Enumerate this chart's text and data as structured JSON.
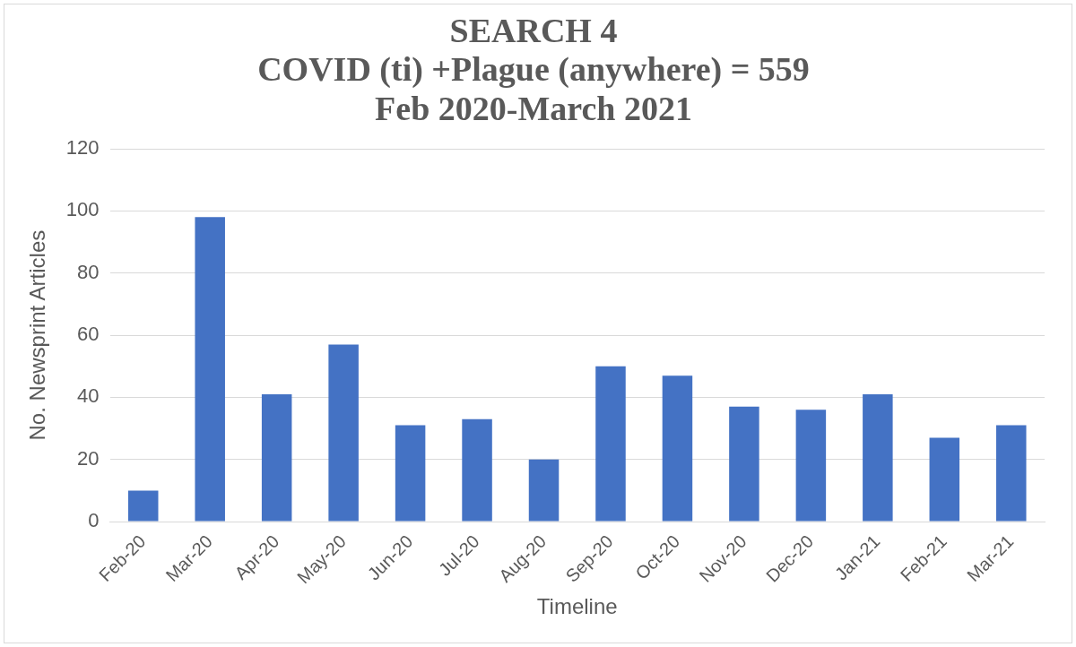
{
  "chart_data": {
    "type": "bar",
    "title": "SEARCH 4\nCOVID (ti) +Plague (anywhere) = 559\nFeb 2020-March 2021",
    "xlabel": "Timeline",
    "ylabel": "No. Newsprint Articles",
    "categories": [
      "Feb-20",
      "Mar-20",
      "Apr-20",
      "May-20",
      "Jun-20",
      "Jul-20",
      "Aug-20",
      "Sep-20",
      "Oct-20",
      "Nov-20",
      "Dec-20",
      "Jan-21",
      "Feb-21",
      "Mar-21"
    ],
    "values": [
      10,
      98,
      41,
      57,
      31,
      33,
      20,
      50,
      47,
      37,
      36,
      41,
      27,
      31
    ],
    "color": "#4472c4",
    "ylim": [
      0,
      120
    ],
    "yticks": [
      0,
      20,
      40,
      60,
      80,
      100,
      120
    ],
    "grid": "y"
  }
}
